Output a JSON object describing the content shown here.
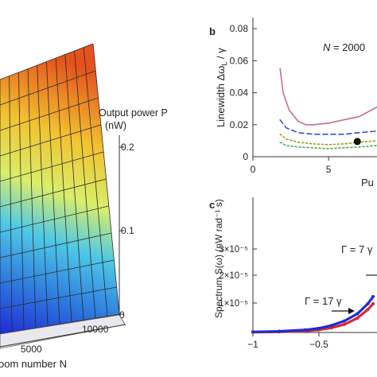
{
  "chart_data": [
    {
      "panel": "a",
      "type": "surface",
      "zlabel_line1": "Output power P",
      "zlabel_line2": "(nW)",
      "z_ticks": [
        "0.2",
        "0.1",
        "0"
      ],
      "xlabel": "oom number N",
      "x_ticks": [
        "5000",
        "10000"
      ],
      "colormap": [
        "#1e2bd6",
        "#2f7fe0",
        "#4ec9e6",
        "#d9ee6a",
        "#f2c230",
        "#e5521d"
      ]
    },
    {
      "panel": "b",
      "type": "line",
      "panel_label": "b",
      "ylabel": "Linewidth Δω_L / γ",
      "ylabel_parts": {
        "pre": "Linewidth Δω",
        "sub": "L",
        "post": " / γ"
      },
      "xlabel_visible": "Pu",
      "annotation": "N = 2000",
      "annotation_parts": {
        "var": "N",
        "rest": " = 2000"
      },
      "x_ticks": [
        0,
        5
      ],
      "y_ticks": [
        "0",
        "0.02",
        "0.04",
        "0.06",
        "0.08"
      ],
      "xlim": [
        0,
        8.2
      ],
      "ylim": [
        0,
        0.085
      ],
      "series": [
        {
          "style": "solid",
          "color": "#c76b8f",
          "x": [
            1.8,
            2.0,
            2.4,
            3.0,
            3.5,
            4.0,
            5.0,
            6.0,
            7.0,
            7.6,
            8.2
          ],
          "y": [
            0.055,
            0.04,
            0.029,
            0.022,
            0.02,
            0.02,
            0.021,
            0.023,
            0.025,
            0.028,
            0.031
          ]
        },
        {
          "style": "dashed",
          "color": "#3a4fd0",
          "x": [
            1.8,
            2.2,
            3.0,
            4.0,
            5.0,
            6.0,
            7.0,
            8.2
          ],
          "y": [
            0.023,
            0.018,
            0.015,
            0.014,
            0.014,
            0.014,
            0.015,
            0.016
          ]
        },
        {
          "style": "dotted",
          "color": "#9a9a2a",
          "x": [
            1.8,
            2.2,
            3.0,
            4.0,
            5.0,
            6.0,
            7.0,
            8.2
          ],
          "y": [
            0.014,
            0.011,
            0.009,
            0.008,
            0.0075,
            0.008,
            0.009,
            0.01
          ]
        },
        {
          "style": "dotted",
          "color": "#49a84a",
          "x": [
            1.8,
            2.2,
            3.0,
            4.0,
            5.0,
            6.0,
            7.0,
            8.2
          ],
          "y": [
            0.009,
            0.007,
            0.006,
            0.0055,
            0.005,
            0.0055,
            0.006,
            0.007
          ]
        }
      ],
      "marker": {
        "x": 6.9,
        "y": 0.0095
      }
    },
    {
      "panel": "c",
      "type": "line",
      "panel_label": "c",
      "ylabel": "Spectrum S(ω)  (nW rad⁻¹ s)",
      "x_ticks": [
        "−1",
        "−0.5"
      ],
      "y_ticks": [
        "3×10⁻⁵",
        "2×10⁻⁵",
        "1×10⁻⁵"
      ],
      "annotations": [
        "Γ = 7 γ",
        "Γ = 17 γ"
      ],
      "xlim": [
        -1,
        -0.05
      ],
      "ylim": [
        0,
        3.6e-05
      ],
      "series": [
        {
          "color": "#d42a2a",
          "x": [
            -1.0,
            -0.8,
            -0.6,
            -0.5,
            -0.4,
            -0.3,
            -0.2,
            -0.12,
            -0.08
          ],
          "y": [
            1e-07,
            2e-07,
            5e-07,
            9e-07,
            1.6e-06,
            2.8e-06,
            5e-06,
            8e-06,
            1e-05
          ]
        },
        {
          "color": "#1e2bd6",
          "x": [
            -1.0,
            -0.8,
            -0.6,
            -0.5,
            -0.4,
            -0.3,
            -0.2,
            -0.12,
            -0.08
          ],
          "y": [
            2e-07,
            4e-07,
            9e-07,
            1.4e-06,
            2.4e-06,
            4e-06,
            6.5e-06,
            1e-05,
            1.25e-05
          ]
        }
      ]
    }
  ]
}
